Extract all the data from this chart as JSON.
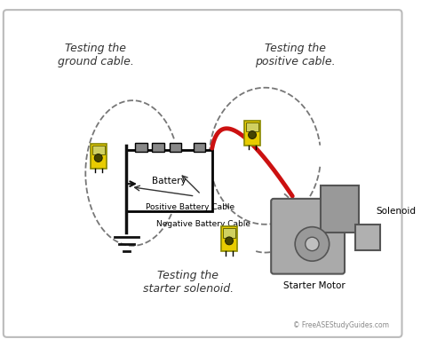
{
  "bg_color": "#ffffff",
  "border_color": "#bbbbbb",
  "copyright": "© FreeASEStudyGuides.com",
  "labels": {
    "ground_cable": "Testing the\nground cable.",
    "positive_cable": "Testing the\npositive cable.",
    "starter_solenoid": "Testing the\nstarter solenoid.",
    "negative_cable": "Negative Battery Cable",
    "positive_battery_cable": "Positive Battery Cable",
    "battery": "Battery",
    "solenoid": "Solenoid",
    "starter_motor": "Starter Motor"
  },
  "multimeter_color": "#e8cc00",
  "red_cable_color": "#cc1111",
  "black_cable_color": "#111111",
  "dashed_color": "#777777",
  "arrow_color": "#333333",
  "motor_color": "#aaaaaa",
  "motor_edge": "#555555"
}
